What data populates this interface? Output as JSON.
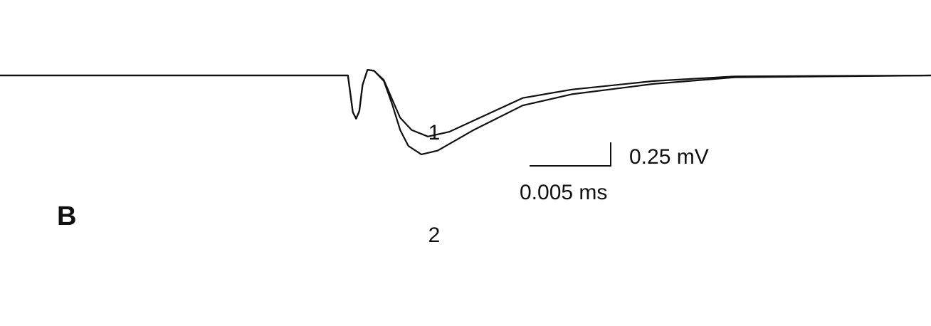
{
  "chart_data": {
    "type": "line",
    "panel_label": "B",
    "series": [
      {
        "name": "1",
        "points": [
          [
            0.0,
            0.0
          ],
          [
            0.0213,
            0.0
          ],
          [
            0.0216,
            -0.39
          ],
          [
            0.0218,
            -0.46
          ],
          [
            0.022,
            -0.38
          ],
          [
            0.0222,
            -0.1
          ],
          [
            0.0225,
            0.06
          ],
          [
            0.0229,
            0.05
          ],
          [
            0.0235,
            -0.05
          ],
          [
            0.024,
            -0.25
          ],
          [
            0.0245,
            -0.45
          ],
          [
            0.0252,
            -0.58
          ],
          [
            0.0262,
            -0.65
          ],
          [
            0.0275,
            -0.6
          ],
          [
            0.0295,
            -0.44
          ],
          [
            0.032,
            -0.24
          ],
          [
            0.035,
            -0.15
          ],
          [
            0.04,
            -0.06
          ],
          [
            0.045,
            -0.01
          ],
          [
            0.057,
            0.0
          ]
        ]
      },
      {
        "name": "2",
        "points": [
          [
            0.0,
            0.0
          ],
          [
            0.0213,
            0.0
          ],
          [
            0.0216,
            -0.39
          ],
          [
            0.0218,
            -0.46
          ],
          [
            0.022,
            -0.38
          ],
          [
            0.0222,
            -0.1
          ],
          [
            0.0225,
            0.06
          ],
          [
            0.0229,
            0.05
          ],
          [
            0.0235,
            -0.06
          ],
          [
            0.024,
            -0.3
          ],
          [
            0.0245,
            -0.58
          ],
          [
            0.025,
            -0.75
          ],
          [
            0.0258,
            -0.84
          ],
          [
            0.0268,
            -0.8
          ],
          [
            0.029,
            -0.58
          ],
          [
            0.032,
            -0.32
          ],
          [
            0.035,
            -0.2
          ],
          [
            0.04,
            -0.09
          ],
          [
            0.045,
            -0.02
          ],
          [
            0.057,
            0.0
          ]
        ]
      }
    ],
    "series_labels": [
      "1",
      "2"
    ],
    "scale_bar": {
      "x_label": "0.005 ms",
      "y_label": "0.25 mV",
      "x_value": 0.005,
      "y_value": 0.25
    },
    "xlim": [
      0,
      0.057
    ],
    "ylim": [
      -1.6,
      0.4
    ],
    "grid": false,
    "axes_visible": false
  }
}
